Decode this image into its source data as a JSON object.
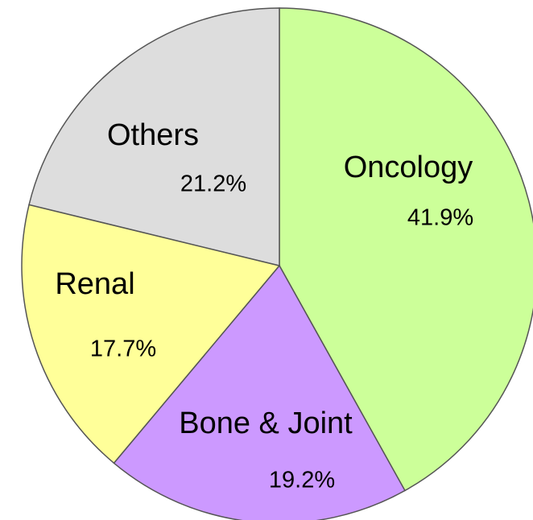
{
  "chart_data": {
    "type": "pie",
    "categories": [
      "Oncology",
      "Bone & Joint",
      "Renal",
      "Others"
    ],
    "values": [
      41.9,
      19.2,
      17.7,
      21.2
    ],
    "value_labels": [
      "41.9%",
      "19.2%",
      "17.7%",
      "21.2%"
    ],
    "colors": [
      "#ccff99",
      "#cc99ff",
      "#ffff99",
      "#dddddd"
    ]
  }
}
